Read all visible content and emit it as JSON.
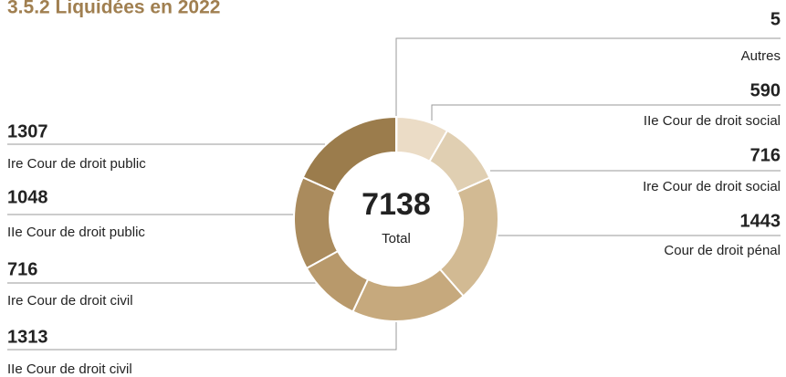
{
  "chart_data": {
    "type": "donut",
    "title": "3.5.2 Liquidées en 2022",
    "total": 7138,
    "total_label": "Total",
    "categories": [
      "Autres",
      "IIe Cour de droit social",
      "Ire Cour de droit social",
      "Cour de droit pénal",
      "IIe Cour de droit civil",
      "Ire Cour de droit civil",
      "IIe Cour de droit public",
      "Ire Cour de droit public"
    ],
    "values": [
      5,
      590,
      716,
      1443,
      1313,
      716,
      1048,
      1307
    ],
    "colors": [
      "#efe4d3",
      "#ebdcc6",
      "#e0cfb2",
      "#d2ba93",
      "#c6a97d",
      "#b8996b",
      "#aa8b5d",
      "#9b7c4c"
    ],
    "title_color": "#a07f50"
  }
}
